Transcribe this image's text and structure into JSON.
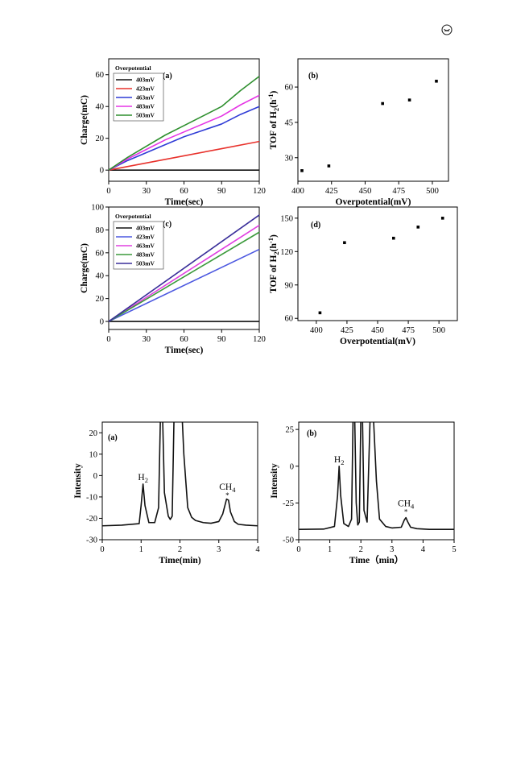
{
  "corner_icon": "circled-logo-icon",
  "chart_data": [
    {
      "id": "fig1a",
      "type": "line",
      "panel_label": "(a)",
      "xlabel": "Time(sec)",
      "ylabel": "Charge(mC)",
      "xlim": [
        0,
        120
      ],
      "ylim": [
        -7,
        70
      ],
      "xticks": [
        0,
        30,
        60,
        90,
        120
      ],
      "yticks": [
        0,
        20,
        40,
        60
      ],
      "legend_title": "Overpotential",
      "legend_position": "top-left",
      "series": [
        {
          "name": "403mV",
          "color": "#111111",
          "x": [
            0,
            120
          ],
          "y": [
            0,
            0
          ]
        },
        {
          "name": "423mV",
          "color": "#e8322c",
          "x": [
            0,
            30,
            60,
            90,
            120
          ],
          "y": [
            0,
            4.5,
            9,
            13.5,
            18
          ]
        },
        {
          "name": "463mV",
          "color": "#2f3bd6",
          "x": [
            0,
            15,
            30,
            45,
            60,
            75,
            90,
            105,
            120
          ],
          "y": [
            0,
            6,
            11,
            16,
            21,
            25,
            29,
            35,
            40
          ]
        },
        {
          "name": "483mV",
          "color": "#e535e5",
          "x": [
            0,
            15,
            30,
            45,
            60,
            75,
            90,
            105,
            120
          ],
          "y": [
            0,
            7,
            13,
            19,
            24,
            29,
            34,
            41,
            47
          ]
        },
        {
          "name": "503mV",
          "color": "#2e8f2e",
          "x": [
            0,
            15,
            30,
            45,
            60,
            75,
            90,
            105,
            120
          ],
          "y": [
            0,
            8,
            15,
            22,
            28,
            34,
            40,
            50,
            59
          ]
        }
      ]
    },
    {
      "id": "fig1b",
      "type": "scatter",
      "panel_label": "(b)",
      "xlabel": "Overpotential(mV)",
      "ylabel": "TOF of H2(h-1)",
      "ylabel_parts": {
        "pre": "TOF of H",
        "sub": "2",
        "mid": "(h",
        "sup": "-1",
        "post": ")"
      },
      "xlim": [
        400,
        512
      ],
      "ylim": [
        20,
        72
      ],
      "xticks": [
        400,
        425,
        450,
        475,
        500
      ],
      "yticks": [
        30,
        45,
        60
      ],
      "points": {
        "x": [
          403,
          423,
          463,
          483,
          503
        ],
        "y": [
          24.5,
          26.5,
          53,
          54.5,
          62.5
        ]
      }
    },
    {
      "id": "fig1c",
      "type": "line",
      "panel_label": "(c)",
      "xlabel": "Time(sec)",
      "ylabel": "Charge(mC)",
      "xlim": [
        0,
        120
      ],
      "ylim": [
        -7,
        100
      ],
      "xticks": [
        0,
        30,
        60,
        90,
        120
      ],
      "yticks": [
        0,
        20,
        40,
        60,
        80,
        100
      ],
      "legend_title": "Overpotential",
      "legend_position": "top-left",
      "series": [
        {
          "name": "403mV",
          "color": "#111111",
          "x": [
            0,
            120
          ],
          "y": [
            0,
            0
          ]
        },
        {
          "name": "423mV",
          "color": "#4c58e0",
          "x": [
            0,
            120
          ],
          "y": [
            0,
            63
          ]
        },
        {
          "name": "463mV",
          "color": "#e040e0",
          "x": [
            0,
            120
          ],
          "y": [
            0,
            84
          ]
        },
        {
          "name": "483mV",
          "color": "#3c9a3c",
          "x": [
            0,
            120
          ],
          "y": [
            0,
            78
          ]
        },
        {
          "name": "503mV",
          "color": "#3a2f9a",
          "x": [
            0,
            120
          ],
          "y": [
            0,
            93
          ]
        }
      ]
    },
    {
      "id": "fig1d",
      "type": "scatter",
      "panel_label": "(d)",
      "xlabel": "Overpotential(mV)",
      "ylabel": "TOF of H2(h-1)",
      "ylabel_parts": {
        "pre": "TOF of H",
        "sub": "2",
        "mid": "(h",
        "sup": "-1",
        "post": ")"
      },
      "xlim": [
        385,
        515
      ],
      "ylim": [
        58,
        160
      ],
      "xticks": [
        400,
        425,
        450,
        475,
        500
      ],
      "yticks": [
        60,
        90,
        120,
        150
      ],
      "points": {
        "x": [
          403,
          423,
          463,
          483,
          503
        ],
        "y": [
          65,
          128,
          132,
          142,
          150
        ]
      }
    },
    {
      "id": "fig2a",
      "type": "line",
      "panel_label": "(a)",
      "xlabel": "Time(min)",
      "ylabel": "Intensity",
      "xlim": [
        0,
        4
      ],
      "ylim": [
        -30,
        25
      ],
      "xticks": [
        0,
        1,
        2,
        3,
        4
      ],
      "yticks": [
        -30,
        -20,
        -10,
        0,
        10,
        20
      ],
      "peak_labels": [
        {
          "main": "H",
          "sub": "2",
          "x": 1.05,
          "y": -4
        },
        {
          "main": "CH",
          "sub": "4",
          "x": 3.22,
          "y": -12,
          "mark": "*"
        }
      ],
      "series": [
        {
          "name": "",
          "color": "#111111",
          "x": [
            0,
            0.5,
            0.95,
            1.0,
            1.05,
            1.1,
            1.2,
            1.35,
            1.45,
            1.5,
            1.55,
            1.6,
            1.7,
            1.75,
            1.8,
            1.85,
            1.9,
            2.0,
            2.05,
            2.1,
            2.2,
            2.3,
            2.4,
            2.6,
            2.8,
            3.0,
            3.1,
            3.2,
            3.25,
            3.3,
            3.4,
            3.5,
            3.7,
            4.0
          ],
          "y": [
            -23.5,
            -23.2,
            -22.5,
            -14,
            -4,
            -14,
            -22,
            -22,
            -15,
            30,
            30,
            -8,
            -19,
            -20.5,
            -19,
            30,
            30,
            30,
            30,
            10,
            -15,
            -19.5,
            -21,
            -22,
            -22.3,
            -21.5,
            -18,
            -11,
            -11.5,
            -17,
            -21.5,
            -22.8,
            -23.2,
            -23.5
          ]
        }
      ]
    },
    {
      "id": "fig2b",
      "type": "line",
      "panel_label": "(b)",
      "xlabel": "Time（min）",
      "ylabel": "Intensity",
      "xlim": [
        0,
        5
      ],
      "ylim": [
        -50,
        30
      ],
      "xticks": [
        0,
        1,
        2,
        3,
        4,
        5
      ],
      "yticks": [
        -50,
        -25,
        0,
        25
      ],
      "peak_labels": [
        {
          "main": "H",
          "sub": "2",
          "x": 1.3,
          "y": 0
        },
        {
          "main": "CH",
          "sub": "4",
          "x": 3.45,
          "y": -35,
          "mark": "*"
        }
      ],
      "series": [
        {
          "name": "",
          "color": "#111111",
          "x": [
            0,
            0.8,
            1.15,
            1.25,
            1.3,
            1.35,
            1.45,
            1.6,
            1.7,
            1.75,
            1.8,
            1.85,
            1.9,
            1.95,
            2.0,
            2.05,
            2.1,
            2.2,
            2.3,
            2.4,
            2.5,
            2.6,
            2.8,
            3.0,
            3.3,
            3.4,
            3.45,
            3.5,
            3.6,
            3.8,
            4.2,
            5.0
          ],
          "y": [
            -43,
            -42.8,
            -41,
            -20,
            0,
            -20,
            -39,
            -41,
            -36,
            35,
            35,
            -25,
            -40,
            -38,
            35,
            35,
            -30,
            -38,
            35,
            35,
            -10,
            -36,
            -41,
            -42,
            -41.5,
            -36.5,
            -35,
            -37.5,
            -41.5,
            -42.5,
            -43,
            -43
          ]
        }
      ]
    }
  ]
}
